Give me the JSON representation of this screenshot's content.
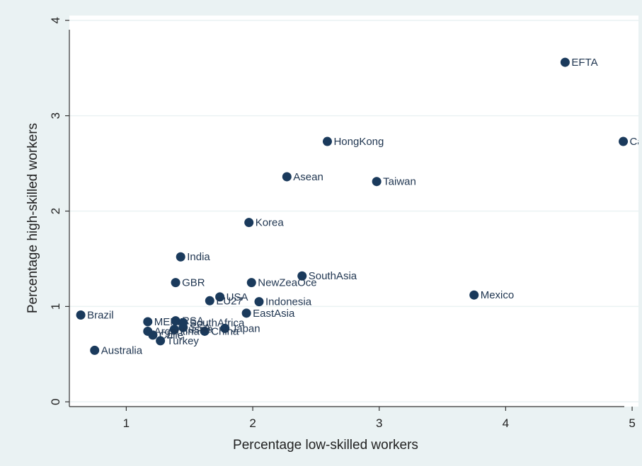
{
  "chart_data": {
    "type": "scatter",
    "title": "",
    "xlabel": "Percentage low-skilled workers",
    "ylabel": "Percentage high-skilled workers",
    "xlim": [
      0.55,
      5.05
    ],
    "ylim": [
      -0.05,
      4.05
    ],
    "xticks": [
      "1",
      "2",
      "3",
      "4",
      "5"
    ],
    "yticks": [
      "0",
      "1",
      "2",
      "3",
      "4"
    ],
    "grid": "horizontal",
    "legend": "none",
    "marker_color": "#1a3a5c",
    "plot_background": "#ffffff",
    "outer_background": "#eaf2f3",
    "points": [
      {
        "label": "EFTA",
        "x": 4.47,
        "y": 3.56
      },
      {
        "label": "Canada",
        "x": 4.93,
        "y": 2.73
      },
      {
        "label": "HongKong",
        "x": 2.59,
        "y": 2.73
      },
      {
        "label": "Asean",
        "x": 2.27,
        "y": 2.36
      },
      {
        "label": "Taiwan",
        "x": 2.98,
        "y": 2.31
      },
      {
        "label": "Korea",
        "x": 1.97,
        "y": 1.88
      },
      {
        "label": "India",
        "x": 1.43,
        "y": 1.52
      },
      {
        "label": "SouthAsia",
        "x": 2.39,
        "y": 1.32
      },
      {
        "label": "GBR",
        "x": 1.39,
        "y": 1.25
      },
      {
        "label": "NewZeaOce",
        "x": 1.99,
        "y": 1.25
      },
      {
        "label": "USA",
        "x": 1.74,
        "y": 1.1
      },
      {
        "label": "EU27",
        "x": 1.66,
        "y": 1.06
      },
      {
        "label": "Indonesia",
        "x": 2.05,
        "y": 1.05
      },
      {
        "label": "Mexico",
        "x": 3.75,
        "y": 1.12
      },
      {
        "label": "EastAsia",
        "x": 1.95,
        "y": 0.93
      },
      {
        "label": "Brazil",
        "x": 0.64,
        "y": 0.91
      },
      {
        "label": "MENA",
        "x": 1.17,
        "y": 0.84
      },
      {
        "label": "RSA",
        "x": 1.39,
        "y": 0.85
      },
      {
        "label": "SouthAfrica",
        "x": 1.45,
        "y": 0.83
      },
      {
        "label": "Japan",
        "x": 1.78,
        "y": 0.77
      },
      {
        "label": "China",
        "x": 1.62,
        "y": 0.74
      },
      {
        "label": "Russia",
        "x": 1.38,
        "y": 0.76
      },
      {
        "label": "SSA",
        "x": 1.45,
        "y": 0.78
      },
      {
        "label": "Argentina",
        "x": 1.17,
        "y": 0.74
      },
      {
        "label": "Chile",
        "x": 1.21,
        "y": 0.7
      },
      {
        "label": "Turkey",
        "x": 1.27,
        "y": 0.64
      },
      {
        "label": "Australia",
        "x": 0.75,
        "y": 0.54
      }
    ]
  }
}
